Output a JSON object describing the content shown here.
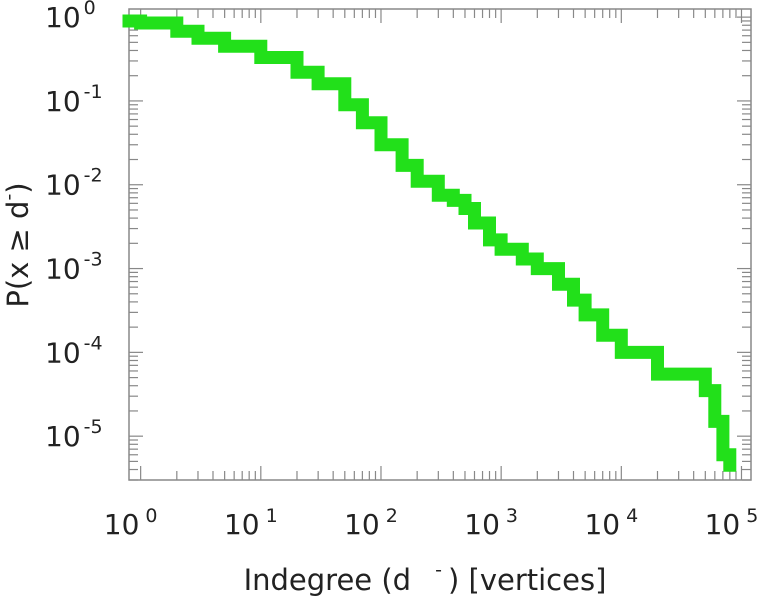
{
  "chart_data": {
    "type": "line",
    "xscale": "log",
    "yscale": "log",
    "xlim": [
      0.8,
      120000
    ],
    "ylim": [
      3e-06,
      1.25
    ],
    "grid": false,
    "xlabel": {
      "prefix": "Indegree (d",
      "sup": "-",
      "suffix": ") [vertices]"
    },
    "ylabel": {
      "prefix": "P(x ≥ d",
      "sup": "-",
      "suffix": ")"
    },
    "xticks": [
      {
        "base": "10",
        "exp": "0",
        "value": 1
      },
      {
        "base": "10",
        "exp": "1",
        "value": 10
      },
      {
        "base": "10",
        "exp": "2",
        "value": 100
      },
      {
        "base": "10",
        "exp": "3",
        "value": 1000
      },
      {
        "base": "10",
        "exp": "4",
        "value": 10000
      },
      {
        "base": "10",
        "exp": "5",
        "value": 100000
      }
    ],
    "yticks": [
      {
        "base": "10",
        "exp": "0",
        "value": 1
      },
      {
        "base": "10",
        "exp": "-1",
        "value": 0.1
      },
      {
        "base": "10",
        "exp": "-2",
        "value": 0.01
      },
      {
        "base": "10",
        "exp": "-3",
        "value": 0.001
      },
      {
        "base": "10",
        "exp": "-4",
        "value": 0.0001
      },
      {
        "base": "10",
        "exp": "-5",
        "value": 1e-05
      }
    ],
    "series": [
      {
        "color": "#22e01a",
        "x": [
          0.8,
          1,
          2,
          3,
          5,
          10,
          20,
          30,
          50,
          70,
          100,
          150,
          200,
          300,
          400,
          500,
          600,
          800,
          1000,
          1500,
          2000,
          3000,
          4000,
          5000,
          7000,
          10000,
          20000,
          40000,
          50000,
          60000,
          70000,
          80000
        ],
        "y": [
          0.9,
          0.85,
          0.68,
          0.56,
          0.45,
          0.33,
          0.22,
          0.16,
          0.09,
          0.055,
          0.03,
          0.017,
          0.011,
          0.0075,
          0.0065,
          0.0052,
          0.0035,
          0.0022,
          0.0017,
          0.0013,
          0.001,
          0.00065,
          0.00042,
          0.00028,
          0.00016,
          0.0001,
          5.5e-05,
          5.5e-05,
          3.5e-05,
          1.5e-05,
          6e-06,
          4.5e-06
        ]
      }
    ]
  }
}
